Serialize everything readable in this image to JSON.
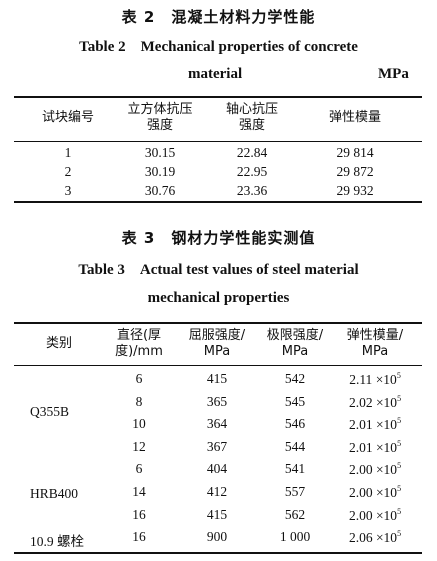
{
  "table2": {
    "caption_cn": "表 2　混凝土材料力学性能",
    "caption_en_line1": "Table 2　Mechanical properties of concrete",
    "caption_en_line2": "material",
    "unit": "MPa",
    "headers": [
      "试块编号",
      "立方体抗压\n强度",
      "轴心抗压\n强度",
      "弹性模量"
    ],
    "rows": [
      [
        "1",
        "30.15",
        "22.84",
        "29 814"
      ],
      [
        "2",
        "30.19",
        "22.95",
        "29 872"
      ],
      [
        "3",
        "30.76",
        "23.36",
        "29 932"
      ]
    ]
  },
  "table3": {
    "caption_cn": "表 3　钢材力学性能实测值",
    "caption_en_line1": "Table 3　Actual test values of steel material",
    "caption_en_line2": "mechanical properties",
    "headers": [
      "类别",
      "直径(厚\n度)/mm",
      "屈服强度/\nMPa",
      "极限强度/\nMPa",
      "弹性模量/\nMPa"
    ],
    "modulus_exp": "5",
    "modulus_times": " ×10",
    "groups": [
      "Q355B",
      "HRB400",
      "10.9 螺栓"
    ],
    "rows": [
      [
        "6",
        "415",
        "542",
        "2.11"
      ],
      [
        "8",
        "365",
        "545",
        "2.02"
      ],
      [
        "10",
        "364",
        "546",
        "2.01"
      ],
      [
        "12",
        "367",
        "544",
        "2.01"
      ],
      [
        "6",
        "404",
        "541",
        "2.00"
      ],
      [
        "14",
        "412",
        "557",
        "2.00"
      ],
      [
        "16",
        "415",
        "562",
        "2.00"
      ],
      [
        "16",
        "900",
        "1 000",
        "2.06"
      ]
    ]
  }
}
